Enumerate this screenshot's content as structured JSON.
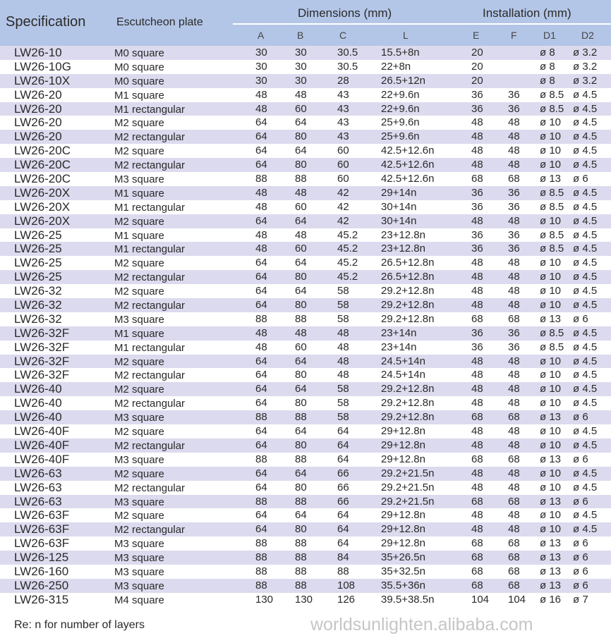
{
  "header": {
    "specification": "Specification",
    "escutcheon_plate": "Escutcheon plate",
    "dimensions": "Dimensions (mm)",
    "installation": "Installation (mm)",
    "sub_columns": [
      "A",
      "B",
      "C",
      "L",
      "E",
      "F",
      "D1",
      "D2"
    ]
  },
  "colors": {
    "header_bg": "#b4c6e7",
    "stripe_bg": "#dcdaee"
  },
  "rows": [
    [
      "LW26-10",
      "M0 square",
      "30",
      "30",
      "30.5",
      "15.5+8n",
      "20",
      "",
      "ø 8",
      "ø 3.2"
    ],
    [
      "LW26-10G",
      "M0 square",
      "30",
      "30",
      "30.5",
      "22+8n",
      "20",
      "",
      "ø 8",
      "ø 3.2"
    ],
    [
      "LW26-10X",
      "M0 square",
      "30",
      "30",
      "28",
      "26.5+12n",
      "20",
      "",
      "ø 8",
      "ø 3.2"
    ],
    [
      "LW26-20",
      "M1 square",
      "48",
      "48",
      "43",
      "22+9.6n",
      "36",
      "36",
      "ø 8.5",
      "ø 4.5"
    ],
    [
      "LW26-20",
      "M1 rectangular",
      "48",
      "60",
      "43",
      "22+9.6n",
      "36",
      "36",
      "ø 8.5",
      "ø 4.5"
    ],
    [
      "LW26-20",
      "M2 square",
      "64",
      "64",
      "43",
      "25+9.6n",
      "48",
      "48",
      "ø 10",
      "ø 4.5"
    ],
    [
      "LW26-20",
      "M2 rectangular",
      "64",
      "80",
      "43",
      "25+9.6n",
      "48",
      "48",
      "ø 10",
      "ø 4.5"
    ],
    [
      "LW26-20C",
      "M2 square",
      "64",
      "64",
      "60",
      "42.5+12.6n",
      "48",
      "48",
      "ø 10",
      "ø 4.5"
    ],
    [
      "LW26-20C",
      "M2 rectangular",
      "64",
      "80",
      "60",
      "42.5+12.6n",
      "48",
      "48",
      "ø 10",
      "ø 4.5"
    ],
    [
      "LW26-20C",
      "M3 square",
      "88",
      "88",
      "60",
      "42.5+12.6n",
      "68",
      "68",
      "ø 13",
      "ø 6"
    ],
    [
      "LW26-20X",
      "M1 square",
      "48",
      "48",
      "42",
      "29+14n",
      "36",
      "36",
      "ø 8.5",
      "ø 4.5"
    ],
    [
      "LW26-20X",
      "M1 rectangular",
      "48",
      "60",
      "42",
      "30+14n",
      "36",
      "36",
      "ø 8.5",
      "ø 4.5"
    ],
    [
      "LW26-20X",
      "M2 square",
      "64",
      "64",
      "42",
      "30+14n",
      "48",
      "48",
      "ø 10",
      "ø 4.5"
    ],
    [
      "LW26-25",
      "M1 square",
      "48",
      "48",
      "45.2",
      "23+12.8n",
      "36",
      "36",
      "ø 8.5",
      "ø 4.5"
    ],
    [
      "LW26-25",
      "M1 rectangular",
      "48",
      "60",
      "45.2",
      "23+12.8n",
      "36",
      "36",
      "ø 8.5",
      "ø 4.5"
    ],
    [
      "LW26-25",
      "M2 square",
      "64",
      "64",
      "45.2",
      "26.5+12.8n",
      "48",
      "48",
      "ø 10",
      "ø 4.5"
    ],
    [
      "LW26-25",
      "M2 rectangular",
      "64",
      "80",
      "45.2",
      "26.5+12.8n",
      "48",
      "48",
      "ø 10",
      "ø 4.5"
    ],
    [
      "LW26-32",
      "M2 square",
      "64",
      "64",
      "58",
      "29.2+12.8n",
      "48",
      "48",
      "ø 10",
      "ø 4.5"
    ],
    [
      "LW26-32",
      "M2 rectangular",
      "64",
      "80",
      "58",
      "29.2+12.8n",
      "48",
      "48",
      "ø 10",
      "ø 4.5"
    ],
    [
      "LW26-32",
      "M3 square",
      "88",
      "88",
      "58",
      "29.2+12.8n",
      "68",
      "68",
      "ø 13",
      "ø 6"
    ],
    [
      "LW26-32F",
      "M1 square",
      "48",
      "48",
      "48",
      "23+14n",
      "36",
      "36",
      "ø 8.5",
      "ø 4.5"
    ],
    [
      "LW26-32F",
      "M1 rectangular",
      "48",
      "60",
      "48",
      "23+14n",
      "36",
      "36",
      "ø 8.5",
      "ø 4.5"
    ],
    [
      "LW26-32F",
      "M2 square",
      "64",
      "64",
      "48",
      "24.5+14n",
      "48",
      "48",
      "ø 10",
      "ø 4.5"
    ],
    [
      "LW26-32F",
      "M2 rectangular",
      "64",
      "80",
      "48",
      "24.5+14n",
      "48",
      "48",
      "ø 10",
      "ø 4.5"
    ],
    [
      "LW26-40",
      "M2 square",
      "64",
      "64",
      "58",
      "29.2+12.8n",
      "48",
      "48",
      "ø 10",
      "ø 4.5"
    ],
    [
      "LW26-40",
      "M2 rectangular",
      "64",
      "80",
      "58",
      "29.2+12.8n",
      "48",
      "48",
      "ø 10",
      "ø 4.5"
    ],
    [
      "LW26-40",
      "M3 square",
      "88",
      "88",
      "58",
      "29.2+12.8n",
      "68",
      "68",
      "ø 13",
      "ø 6"
    ],
    [
      "LW26-40F",
      "M2 square",
      "64",
      "64",
      "64",
      "29+12.8n",
      "48",
      "48",
      "ø 10",
      "ø 4.5"
    ],
    [
      "LW26-40F",
      "M2 rectangular",
      "64",
      "80",
      "64",
      "29+12.8n",
      "48",
      "48",
      "ø 10",
      "ø 4.5"
    ],
    [
      "LW26-40F",
      "M3 square",
      "88",
      "88",
      "64",
      "29+12.8n",
      "68",
      "68",
      "ø 13",
      "ø 6"
    ],
    [
      "LW26-63",
      "M2 square",
      "64",
      "64",
      "66",
      "29.2+21.5n",
      "48",
      "48",
      "ø 10",
      "ø 4.5"
    ],
    [
      "LW26-63",
      "M2 rectangular",
      "64",
      "80",
      "66",
      "29.2+21.5n",
      "48",
      "48",
      "ø 10",
      "ø 4.5"
    ],
    [
      "LW26-63",
      "M3 square",
      "88",
      "88",
      "66",
      "29.2+21.5n",
      "68",
      "68",
      "ø 13",
      "ø 6"
    ],
    [
      "LW26-63F",
      "M2 square",
      "64",
      "64",
      "64",
      "29+12.8n",
      "48",
      "48",
      "ø 10",
      "ø 4.5"
    ],
    [
      "LW26-63F",
      "M2 rectangular",
      "64",
      "80",
      "64",
      "29+12.8n",
      "48",
      "48",
      "ø 10",
      "ø 4.5"
    ],
    [
      "LW26-63F",
      "M3 square",
      "88",
      "88",
      "64",
      "29+12.8n",
      "68",
      "68",
      "ø 13",
      "ø 6"
    ],
    [
      "LW26-125",
      "M3 square",
      "88",
      "88",
      "84",
      "35+26.5n",
      "68",
      "68",
      "ø 13",
      "ø 6"
    ],
    [
      "LW26-160",
      "M3 square",
      "88",
      "88",
      "88",
      "35+32.5n",
      "68",
      "68",
      "ø 13",
      "ø 6"
    ],
    [
      "LW26-250",
      "M3 square",
      "88",
      "88",
      "108",
      "35.5+36n",
      "68",
      "68",
      "ø 13",
      "ø 6"
    ],
    [
      "LW26-315",
      "M4 square",
      "130",
      "130",
      "126",
      "39.5+38.5n",
      "104",
      "104",
      "ø 16",
      "ø 7"
    ]
  ],
  "note": "Re: n for number of layers",
  "watermark": "worldsunlighten.alibaba.com"
}
